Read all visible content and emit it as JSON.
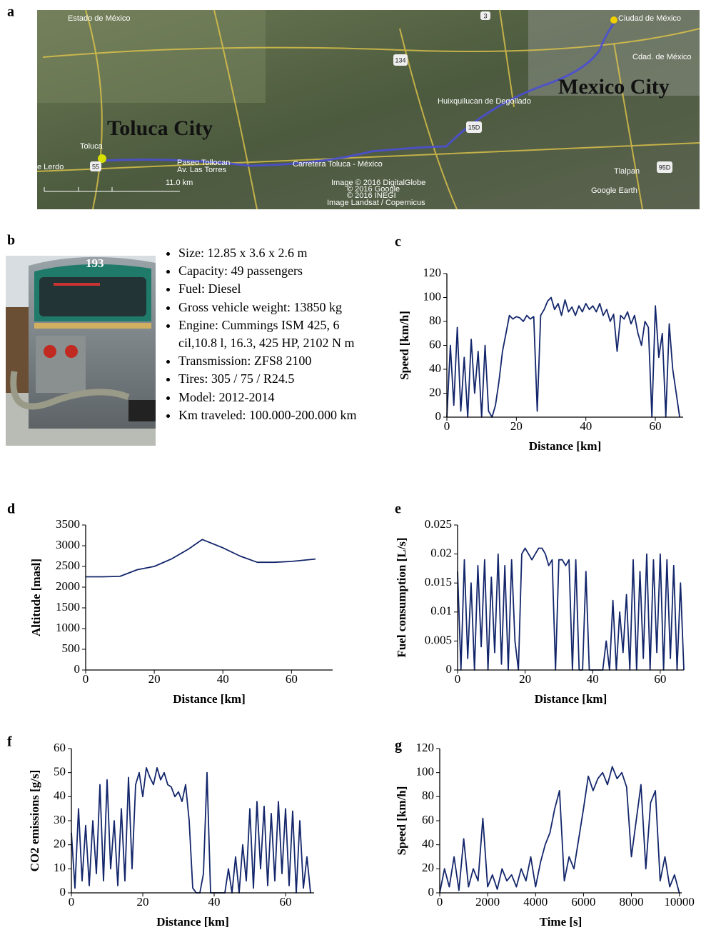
{
  "map": {
    "label": "a",
    "labels": [
      "Estado de México",
      "Ciudad de México",
      "Cdad. de México",
      "Mexico City",
      "Toluca City",
      "Huixquilucan de Degollado",
      "Toluca",
      "e Lerdo",
      "Tlalpan",
      "Paseo Tollocan",
      "Av. Las Torres",
      "Carretera Toluca - México",
      "Google Earth",
      "Image © 2016 DigitalGlobe",
      "© 2016 Google",
      "© 2016 INEGI",
      "Image Landsat / Copernicus",
      "11.0 km",
      "134",
      "15D",
      "55",
      "95D",
      "3"
    ]
  },
  "bus": {
    "label": "b",
    "photo_number": "193",
    "specs": [
      "Size: 12.85 x 3.6 x 2.6 m",
      "Capacity: 49 passengers",
      "Fuel: Diesel",
      "Gross vehicle weight: 13850 kg",
      "Engine: Cummings ISM 425, 6 cil,10.8 l, 16.3, 425 HP, 2102 N m",
      "Transmission: ZFS8 2100",
      "Tires: 305 / 75 / R24.5",
      "Model: 2012-2014",
      "Km traveled: 100.000-200.000 km"
    ]
  },
  "chart_data": [
    {
      "type": "line",
      "label": "c",
      "xlabel": "Distance [km]",
      "ylabel": "Speed [km/h]",
      "color": "#13266b",
      "xlim": [
        0,
        68
      ],
      "xticks": [
        0,
        20,
        40,
        60
      ],
      "ylim": [
        0,
        120
      ],
      "yticks": [
        0,
        20,
        40,
        60,
        80,
        100,
        120
      ],
      "x": [
        0,
        1,
        2,
        3,
        4,
        5,
        6,
        7,
        8,
        9,
        10,
        11,
        12,
        13,
        14,
        15,
        16,
        17,
        18,
        19,
        20,
        21,
        22,
        23,
        24,
        25,
        26,
        27,
        28,
        29,
        30,
        31,
        32,
        33,
        34,
        35,
        36,
        37,
        38,
        39,
        40,
        41,
        42,
        43,
        44,
        45,
        46,
        47,
        48,
        49,
        50,
        51,
        52,
        53,
        54,
        55,
        56,
        57,
        58,
        59,
        60,
        61,
        62,
        63,
        64,
        65,
        66,
        67
      ],
      "values": [
        0,
        60,
        10,
        75,
        5,
        50,
        0,
        65,
        20,
        55,
        0,
        60,
        5,
        0,
        10,
        30,
        55,
        70,
        85,
        82,
        84,
        83,
        80,
        85,
        82,
        84,
        5,
        85,
        90,
        97,
        100,
        90,
        95,
        85,
        98,
        88,
        92,
        85,
        93,
        88,
        95,
        90,
        93,
        88,
        95,
        85,
        90,
        80,
        86,
        55,
        85,
        82,
        88,
        78,
        85,
        70,
        60,
        80,
        75,
        0,
        93,
        50,
        70,
        0,
        78,
        40,
        20,
        0
      ]
    },
    {
      "type": "line",
      "label": "d",
      "xlabel": "Distance [km]",
      "ylabel": "Altitude [masl]",
      "color": "#13266b",
      "xlim": [
        0,
        72
      ],
      "xticks": [
        0,
        20,
        40,
        60
      ],
      "ylim": [
        0,
        3500
      ],
      "yticks": [
        0,
        500,
        1000,
        1500,
        2000,
        2500,
        3000,
        3500
      ],
      "x": [
        0,
        5,
        10,
        15,
        20,
        25,
        30,
        34,
        40,
        45,
        50,
        55,
        60,
        67
      ],
      "values": [
        2250,
        2250,
        2260,
        2420,
        2500,
        2680,
        2920,
        3150,
        2950,
        2750,
        2600,
        2600,
        2620,
        2680
      ]
    },
    {
      "type": "line",
      "label": "e",
      "xlabel": "Distance [km]",
      "ylabel": "Fuel consumption [L/s]",
      "color": "#13266b",
      "xlim": [
        0,
        67
      ],
      "xticks": [
        0,
        20,
        40,
        60
      ],
      "ylim": [
        0,
        0.025
      ],
      "yticks": [
        0,
        0.005,
        0.01,
        0.015,
        0.02,
        0.025
      ],
      "x": [
        0,
        1,
        2,
        3,
        4,
        5,
        6,
        7,
        8,
        9,
        10,
        11,
        12,
        13,
        14,
        15,
        16,
        17,
        18,
        19,
        20,
        21,
        22,
        23,
        24,
        25,
        26,
        27,
        28,
        29,
        30,
        31,
        32,
        33,
        34,
        35,
        36,
        37,
        38,
        39,
        40,
        41,
        42,
        43,
        44,
        45,
        46,
        47,
        48,
        49,
        50,
        51,
        52,
        53,
        54,
        55,
        56,
        57,
        58,
        59,
        60,
        61,
        62,
        63,
        64,
        65,
        66,
        67
      ],
      "values": [
        0.017,
        0,
        0.019,
        0.002,
        0.015,
        0,
        0.018,
        0.004,
        0.019,
        0,
        0.016,
        0.003,
        0.02,
        0.001,
        0.018,
        0,
        0.019,
        0.005,
        0,
        0.02,
        0.021,
        0.02,
        0.019,
        0.02,
        0.021,
        0.021,
        0.02,
        0.018,
        0.019,
        0,
        0.019,
        0.019,
        0.018,
        0.019,
        0,
        0.019,
        0,
        0,
        0.017,
        0,
        0,
        0,
        0,
        0,
        0.005,
        0,
        0.012,
        0,
        0.01,
        0.003,
        0.013,
        0,
        0.019,
        0,
        0.017,
        0.002,
        0.02,
        0,
        0.019,
        0.003,
        0.02,
        0,
        0.019,
        0.002,
        0.018,
        0,
        0.015,
        0
      ]
    },
    {
      "type": "line",
      "label": "f",
      "xlabel": "Distance [km]",
      "ylabel": "CO2 emissions [g/s]",
      "color": "#13266b",
      "xlim": [
        0,
        68
      ],
      "xticks": [
        0,
        20,
        40,
        60
      ],
      "ylim": [
        0,
        60
      ],
      "yticks": [
        0,
        10,
        20,
        30,
        40,
        50,
        60
      ],
      "x": [
        0,
        1,
        2,
        3,
        4,
        5,
        6,
        7,
        8,
        9,
        10,
        11,
        12,
        13,
        14,
        15,
        16,
        17,
        18,
        19,
        20,
        21,
        22,
        23,
        24,
        25,
        26,
        27,
        28,
        29,
        30,
        31,
        32,
        33,
        34,
        35,
        36,
        37,
        38,
        39,
        40,
        41,
        42,
        43,
        44,
        45,
        46,
        47,
        48,
        49,
        50,
        51,
        52,
        53,
        54,
        55,
        56,
        57,
        58,
        59,
        60,
        61,
        62,
        63,
        64,
        65,
        66,
        67
      ],
      "values": [
        25,
        2,
        35,
        5,
        28,
        3,
        30,
        8,
        45,
        5,
        47,
        10,
        30,
        3,
        35,
        5,
        48,
        10,
        45,
        50,
        40,
        52,
        48,
        45,
        52,
        47,
        50,
        45,
        44,
        40,
        42,
        38,
        45,
        30,
        2,
        0,
        0,
        8,
        50,
        0,
        0,
        0,
        0,
        0,
        10,
        0,
        15,
        0,
        20,
        5,
        35,
        2,
        38,
        10,
        36,
        3,
        33,
        5,
        38,
        8,
        35,
        3,
        34,
        0,
        30,
        2,
        15,
        0
      ]
    },
    {
      "type": "line",
      "label": "g",
      "xlabel": "Time [s]",
      "ylabel": "Speed [km/h]",
      "color": "#13266b",
      "xlim": [
        0,
        10100
      ],
      "xticks": [
        0,
        2000,
        4000,
        6000,
        8000,
        10000
      ],
      "ylim": [
        0,
        120
      ],
      "yticks": [
        0,
        20,
        40,
        60,
        80,
        100,
        120
      ],
      "x": [
        0,
        200,
        400,
        600,
        800,
        1000,
        1200,
        1400,
        1600,
        1800,
        2000,
        2200,
        2400,
        2600,
        2800,
        3000,
        3200,
        3400,
        3600,
        3800,
        4000,
        4200,
        4400,
        4600,
        4800,
        5000,
        5200,
        5400,
        5600,
        5800,
        6000,
        6200,
        6400,
        6600,
        6800,
        7000,
        7200,
        7400,
        7600,
        7800,
        8000,
        8200,
        8400,
        8600,
        8800,
        9000,
        9200,
        9400,
        9600,
        9800,
        10000
      ],
      "values": [
        0,
        20,
        5,
        30,
        2,
        45,
        5,
        20,
        10,
        62,
        5,
        15,
        3,
        20,
        10,
        15,
        5,
        20,
        10,
        30,
        5,
        25,
        40,
        50,
        70,
        85,
        10,
        30,
        20,
        45,
        70,
        97,
        85,
        95,
        100,
        90,
        105,
        95,
        100,
        88,
        30,
        60,
        90,
        20,
        75,
        85,
        10,
        30,
        5,
        15,
        0
      ]
    }
  ]
}
